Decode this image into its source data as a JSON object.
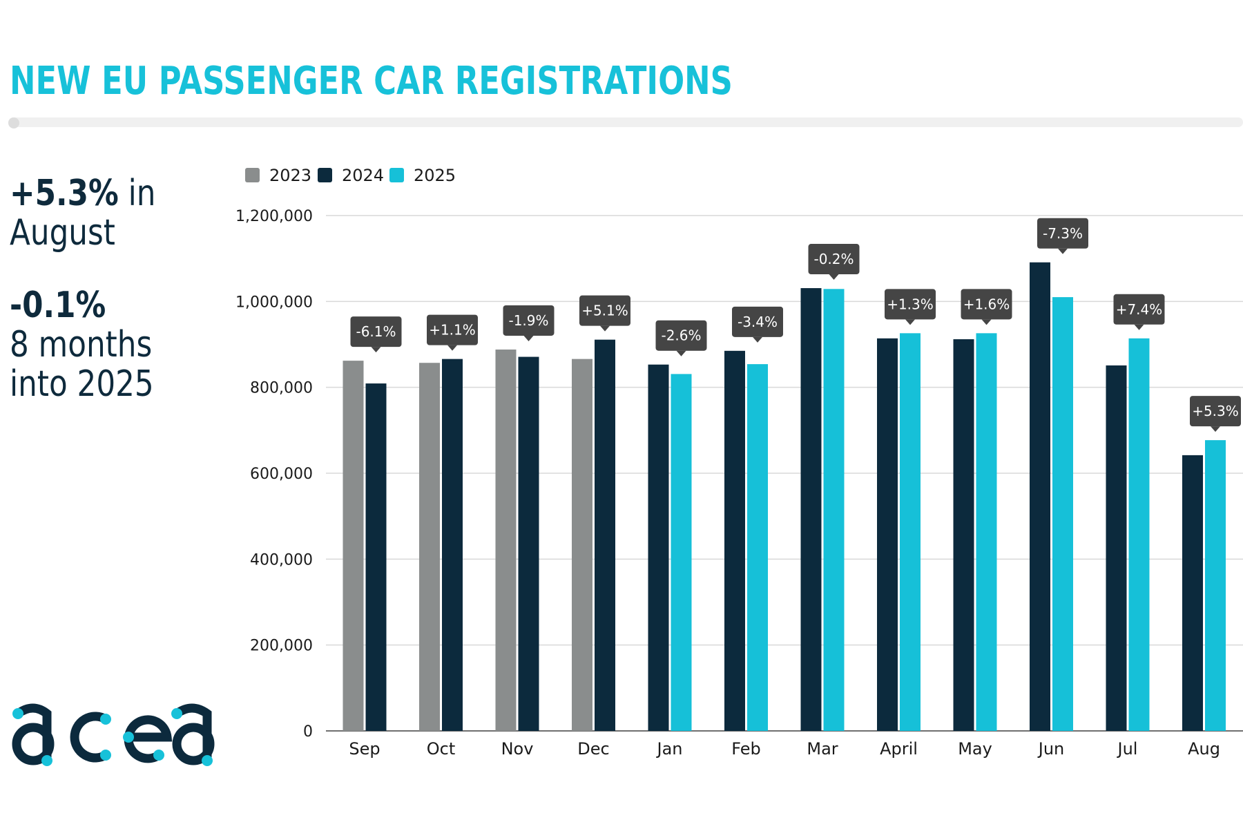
{
  "title": "NEW EU PASSENGER CAR REGISTRATIONS",
  "summary": {
    "stat1_value": "+5.3%",
    "stat1_suffix": " in",
    "stat1_line2": "August",
    "stat2_value": "-0.1%",
    "stat2_line2": "8 months",
    "stat2_line3": "into 2025"
  },
  "logo_alt": "acea",
  "colors": {
    "title": "#17c1d9",
    "y2023": "#8a8d8d",
    "y2024": "#0c2a3d",
    "y2025": "#16c0d8",
    "callout": "#454545",
    "grid": "#d9d9d9"
  },
  "chart_data": {
    "type": "bar",
    "categories": [
      "Sep",
      "Oct",
      "Nov",
      "Dec",
      "Jan",
      "Feb",
      "Mar",
      "April",
      "May",
      "Jun",
      "Jul",
      "Aug"
    ],
    "series": [
      {
        "name": "2023",
        "values": [
          862000,
          857000,
          888000,
          866000,
          null,
          null,
          null,
          null,
          null,
          null,
          null,
          null
        ]
      },
      {
        "name": "2024",
        "values": [
          809000,
          866000,
          871000,
          911000,
          853000,
          885000,
          1031000,
          914000,
          912000,
          1091000,
          851000,
          642000
        ]
      },
      {
        "name": "2025",
        "values": [
          null,
          null,
          null,
          null,
          831000,
          854000,
          1029000,
          926000,
          926000,
          1010000,
          914000,
          677000
        ]
      }
    ],
    "annotations": [
      "-6.1%",
      "+1.1%",
      "-1.9%",
      "+5.1%",
      "-2.6%",
      "-3.4%",
      "-0.2%",
      "+1.3%",
      "+1.6%",
      "-7.3%",
      "+7.4%",
      "+5.3%"
    ],
    "yticks": [
      0,
      200000,
      400000,
      600000,
      800000,
      1000000,
      1200000
    ],
    "ytick_labels": [
      "0",
      "200,000",
      "400,000",
      "600,000",
      "800,000",
      "1,000,000",
      "1,200,000"
    ],
    "ylim": [
      0,
      1200000
    ],
    "grid": true,
    "legend": "top-left"
  }
}
